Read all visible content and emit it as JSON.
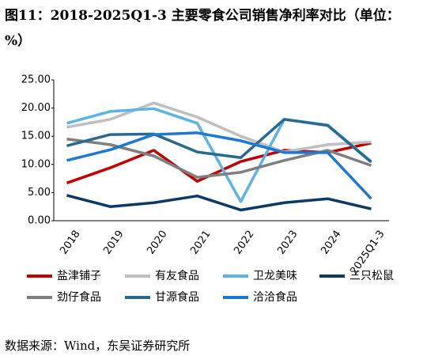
{
  "chart_data": {
    "type": "line",
    "title": "图11：2018-2025Q1-3  主要零食公司销售净利率对比（单位：%）",
    "source": "数据来源：Wind，东吴证券研究所",
    "categories": [
      "2018",
      "2019",
      "2020",
      "2021",
      "2022",
      "2023",
      "2024",
      "2025Q1-3"
    ],
    "ylim": [
      0,
      25
    ],
    "yticks": [
      {
        "value": 0,
        "label": "0.00"
      },
      {
        "value": 5,
        "label": "5.00"
      },
      {
        "value": 10,
        "label": "10.00"
      },
      {
        "value": 15,
        "label": "15.00"
      },
      {
        "value": 20,
        "label": "20.00"
      },
      {
        "value": 25,
        "label": "25.00"
      }
    ],
    "grid": false,
    "legend": "bottom",
    "series": [
      {
        "name": "盐津铺子",
        "color": "#c00000",
        "values": [
          6.7,
          9.4,
          12.5,
          7.0,
          10.5,
          12.5,
          12.1,
          13.8
        ]
      },
      {
        "name": "有友食品",
        "color": "#bfbfbf",
        "values": [
          16.6,
          18.0,
          20.9,
          18.4,
          15.0,
          12.2,
          13.5,
          14.0
        ]
      },
      {
        "name": "卫龙美味",
        "color": "#5bb4e5",
        "values": [
          17.3,
          19.4,
          19.9,
          17.3,
          3.4,
          18.0,
          17.0,
          10.5
        ]
      },
      {
        "name": "三只松鼠",
        "color": "#0b3a66",
        "values": [
          4.5,
          2.5,
          3.2,
          4.4,
          1.9,
          3.2,
          3.9,
          2.1
        ]
      },
      {
        "name": "劲仔食品",
        "color": "#7f7f7f",
        "values": [
          14.5,
          13.5,
          11.5,
          7.7,
          8.6,
          10.7,
          12.5,
          9.8
        ]
      },
      {
        "name": "甘源食品",
        "color": "#2b6a8c",
        "values": [
          13.3,
          15.3,
          15.4,
          12.2,
          11.2,
          18.0,
          16.9,
          10.4
        ]
      },
      {
        "name": "洽洽食品",
        "color": "#1e78d0",
        "values": [
          10.7,
          12.6,
          15.3,
          15.6,
          14.2,
          12.1,
          12.1,
          3.9
        ]
      }
    ]
  }
}
